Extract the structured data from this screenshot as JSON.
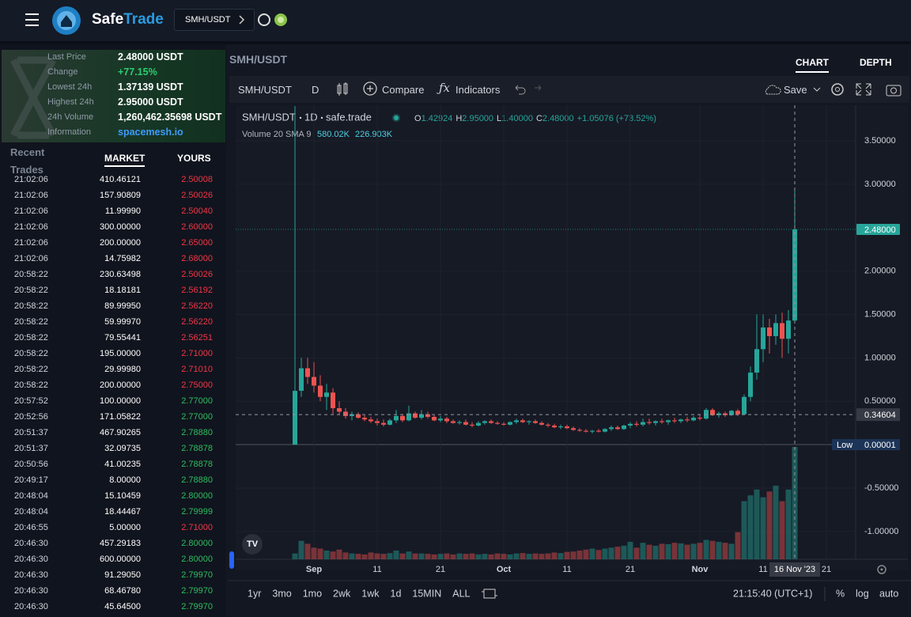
{
  "header": {
    "brand_left": "Safe",
    "brand_right": "Trade",
    "pair": "SMH/USDT"
  },
  "market_info": {
    "rows": [
      {
        "label": "Last Price",
        "value": "2.48000 USDT"
      },
      {
        "label": "Change",
        "value": "+77.15%"
      },
      {
        "label": "Lowest 24h",
        "value": "1.37139 USDT"
      },
      {
        "label": "Highest 24h",
        "value": "2.95000 USDT"
      },
      {
        "label": "24h Volume",
        "value": "1,260,462.35698 USDT"
      },
      {
        "label": "Information",
        "value": "spacemesh.io"
      }
    ]
  },
  "recent_trades": {
    "title": "Recent Trades",
    "tabs": [
      "MARKET",
      "YOURS"
    ],
    "sell_color": "#f23645",
    "buy_color": "#2ebd5f",
    "rows": [
      [
        "21:02:06",
        "410.46121",
        "2.50008",
        "sell"
      ],
      [
        "21:02:06",
        "157.90809",
        "2.50026",
        "sell"
      ],
      [
        "21:02:06",
        "11.99990",
        "2.50040",
        "sell"
      ],
      [
        "21:02:06",
        "300.00000",
        "2.60000",
        "sell"
      ],
      [
        "21:02:06",
        "200.00000",
        "2.65000",
        "sell"
      ],
      [
        "21:02:06",
        "14.75982",
        "2.68000",
        "sell"
      ],
      [
        "20:58:22",
        "230.63498",
        "2.50026",
        "sell"
      ],
      [
        "20:58:22",
        "18.18181",
        "2.56192",
        "sell"
      ],
      [
        "20:58:22",
        "89.99950",
        "2.56220",
        "sell"
      ],
      [
        "20:58:22",
        "59.99970",
        "2.56220",
        "sell"
      ],
      [
        "20:58:22",
        "79.55441",
        "2.56251",
        "sell"
      ],
      [
        "20:58:22",
        "195.00000",
        "2.71000",
        "sell"
      ],
      [
        "20:58:22",
        "29.99980",
        "2.71010",
        "sell"
      ],
      [
        "20:58:22",
        "200.00000",
        "2.75000",
        "sell"
      ],
      [
        "20:57:52",
        "100.00000",
        "2.77000",
        "buy"
      ],
      [
        "20:52:56",
        "171.05822",
        "2.77000",
        "buy"
      ],
      [
        "20:51:37",
        "467.90265",
        "2.78880",
        "buy"
      ],
      [
        "20:51:37",
        "32.09735",
        "2.78878",
        "buy"
      ],
      [
        "20:50:56",
        "41.00235",
        "2.78878",
        "buy"
      ],
      [
        "20:49:17",
        "8.00000",
        "2.78880",
        "buy"
      ],
      [
        "20:48:04",
        "15.10459",
        "2.80000",
        "buy"
      ],
      [
        "20:48:04",
        "18.44467",
        "2.79999",
        "buy"
      ],
      [
        "20:46:55",
        "5.00000",
        "2.71000",
        "sell"
      ],
      [
        "20:46:30",
        "457.29183",
        "2.80000",
        "buy"
      ],
      [
        "20:46:30",
        "600.00000",
        "2.80000",
        "buy"
      ],
      [
        "20:46:30",
        "91.29050",
        "2.79970",
        "buy"
      ],
      [
        "20:46:30",
        "68.46780",
        "2.79970",
        "buy"
      ],
      [
        "20:46:30",
        "45.64500",
        "2.79970",
        "buy"
      ]
    ]
  },
  "chart_panel": {
    "title": "SMH/USDT",
    "tabs": [
      "CHART",
      "DEPTH"
    ],
    "toolbar": {
      "symbol": "SMH/USDT",
      "interval": "D",
      "compare": "Compare",
      "indicators": "Indicators",
      "save": "Save"
    },
    "legend": {
      "symbol": "SMH/USDT",
      "interval": "1D",
      "source": "safe.trade",
      "ohlc": [
        {
          "key": "O",
          "value": "1.42924"
        },
        {
          "key": "H",
          "value": "2.95000"
        },
        {
          "key": "L",
          "value": "1.40000"
        },
        {
          "key": "C",
          "value": "2.48000"
        }
      ],
      "change": "+1.05076 (+73.52%)",
      "volume_label": "Volume 20 SMA 9",
      "volume_values": [
        "580.02K",
        "226.903K"
      ]
    },
    "timeframes": [
      "1yr",
      "3mo",
      "1mo",
      "2wk",
      "1wk",
      "1d",
      "15MIN",
      "ALL"
    ],
    "clock": "21:15:40 (UTC+1)",
    "scale_options": [
      "%",
      "log",
      "auto"
    ]
  },
  "chart": {
    "type": "candlestick",
    "up_color": "#26a69a",
    "down_color": "#ef5350",
    "xlim": [
      -9.375,
      88.625
    ],
    "ylim": [
      -1.32,
      3.91
    ],
    "xticks": [
      {
        "value": 3,
        "label": "Sep"
      },
      {
        "value": 13,
        "label": "11"
      },
      {
        "value": 23,
        "label": "21"
      },
      {
        "value": 33,
        "label": "Oct"
      },
      {
        "value": 43,
        "label": "11"
      },
      {
        "value": 53,
        "label": "21"
      },
      {
        "value": 64,
        "label": "Nov"
      },
      {
        "value": 74,
        "label": "11"
      },
      {
        "value": 84,
        "label": "21"
      }
    ],
    "yticks": [
      {
        "value": 3.5,
        "label": "3.50000"
      },
      {
        "value": 3,
        "label": "3.00000"
      },
      {
        "value": 2,
        "label": "2.00000"
      },
      {
        "value": 1.5,
        "label": "1.50000"
      },
      {
        "value": 1,
        "label": "1.00000"
      },
      {
        "value": 0.5,
        "label": "0.50000"
      },
      {
        "value": -0.5,
        "label": "-0.50000"
      },
      {
        "value": -1,
        "label": "-1.00000"
      }
    ],
    "last_price": {
      "value": 2.48,
      "label": "2.48000"
    },
    "low": {
      "prefix": "Low",
      "value": 1e-05,
      "label": "0.00001"
    },
    "crosshair": {
      "x": 79,
      "x_label": "16 Nov '23",
      "y": 0.34604,
      "y_label": "0.34604"
    },
    "candles": [
      [
        1e-05,
        3.9,
        1e-05,
        0.62
      ],
      [
        0.62,
        1.0,
        0.55,
        0.88
      ],
      [
        0.88,
        1.0,
        0.7,
        0.78
      ],
      [
        0.78,
        0.95,
        0.6,
        0.68
      ],
      [
        0.68,
        0.8,
        0.5,
        0.55
      ],
      [
        0.55,
        0.7,
        0.4,
        0.6
      ],
      [
        0.6,
        0.65,
        0.35,
        0.42
      ],
      [
        0.42,
        0.5,
        0.35,
        0.38
      ],
      [
        0.38,
        0.42,
        0.3,
        0.33
      ],
      [
        0.33,
        0.38,
        0.28,
        0.35
      ],
      [
        0.35,
        0.37,
        0.3,
        0.31
      ],
      [
        0.31,
        0.34,
        0.27,
        0.29
      ],
      [
        0.29,
        0.32,
        0.25,
        0.27
      ],
      [
        0.27,
        0.3,
        0.22,
        0.25
      ],
      [
        0.25,
        0.29,
        0.21,
        0.23
      ],
      [
        0.23,
        0.3,
        0.22,
        0.28
      ],
      [
        0.28,
        0.4,
        0.25,
        0.33
      ],
      [
        0.33,
        0.35,
        0.26,
        0.28
      ],
      [
        0.28,
        0.45,
        0.27,
        0.36
      ],
      [
        0.36,
        0.38,
        0.3,
        0.31
      ],
      [
        0.31,
        0.4,
        0.29,
        0.35
      ],
      [
        0.35,
        0.38,
        0.3,
        0.32
      ],
      [
        0.32,
        0.34,
        0.27,
        0.28
      ],
      [
        0.28,
        0.33,
        0.26,
        0.3
      ],
      [
        0.3,
        0.32,
        0.25,
        0.27
      ],
      [
        0.27,
        0.29,
        0.24,
        0.25
      ],
      [
        0.25,
        0.28,
        0.23,
        0.26
      ],
      [
        0.26,
        0.29,
        0.22,
        0.23
      ],
      [
        0.23,
        0.26,
        0.2,
        0.22
      ],
      [
        0.22,
        0.27,
        0.21,
        0.25
      ],
      [
        0.25,
        0.28,
        0.23,
        0.27
      ],
      [
        0.27,
        0.29,
        0.24,
        0.25
      ],
      [
        0.25,
        0.27,
        0.23,
        0.24
      ],
      [
        0.24,
        0.26,
        0.22,
        0.23
      ],
      [
        0.23,
        0.27,
        0.22,
        0.26
      ],
      [
        0.26,
        0.3,
        0.24,
        0.28
      ],
      [
        0.28,
        0.3,
        0.25,
        0.26
      ],
      [
        0.26,
        0.28,
        0.23,
        0.27
      ],
      [
        0.27,
        0.29,
        0.24,
        0.25
      ],
      [
        0.25,
        0.27,
        0.22,
        0.23
      ],
      [
        0.23,
        0.25,
        0.2,
        0.22
      ],
      [
        0.22,
        0.24,
        0.19,
        0.2
      ],
      [
        0.2,
        0.23,
        0.18,
        0.21
      ],
      [
        0.21,
        0.23,
        0.18,
        0.19
      ],
      [
        0.19,
        0.21,
        0.16,
        0.17
      ],
      [
        0.17,
        0.19,
        0.15,
        0.16
      ],
      [
        0.16,
        0.18,
        0.14,
        0.15
      ],
      [
        0.15,
        0.17,
        0.13,
        0.16
      ],
      [
        0.16,
        0.18,
        0.14,
        0.15
      ],
      [
        0.15,
        0.19,
        0.14,
        0.18
      ],
      [
        0.18,
        0.22,
        0.16,
        0.2
      ],
      [
        0.2,
        0.22,
        0.17,
        0.18
      ],
      [
        0.18,
        0.23,
        0.17,
        0.22
      ],
      [
        0.22,
        0.26,
        0.19,
        0.24
      ],
      [
        0.24,
        0.27,
        0.21,
        0.23
      ],
      [
        0.23,
        0.3,
        0.21,
        0.26
      ],
      [
        0.26,
        0.3,
        0.23,
        0.25
      ],
      [
        0.25,
        0.28,
        0.22,
        0.27
      ],
      [
        0.27,
        0.3,
        0.24,
        0.26
      ],
      [
        0.26,
        0.29,
        0.23,
        0.28
      ],
      [
        0.28,
        0.31,
        0.25,
        0.27
      ],
      [
        0.27,
        0.3,
        0.25,
        0.29
      ],
      [
        0.29,
        0.32,
        0.26,
        0.28
      ],
      [
        0.28,
        0.33,
        0.27,
        0.31
      ],
      [
        0.31,
        0.35,
        0.28,
        0.3
      ],
      [
        0.3,
        0.42,
        0.29,
        0.4
      ],
      [
        0.4,
        0.42,
        0.33,
        0.34
      ],
      [
        0.34,
        0.38,
        0.31,
        0.36
      ],
      [
        0.36,
        0.38,
        0.32,
        0.34
      ],
      [
        0.34,
        0.4,
        0.33,
        0.39
      ],
      [
        0.39,
        0.41,
        0.33,
        0.35
      ],
      [
        0.35,
        0.58,
        0.34,
        0.55
      ],
      [
        0.55,
        0.9,
        0.5,
        0.83
      ],
      [
        0.83,
        1.5,
        0.75,
        1.1
      ],
      [
        1.1,
        1.5,
        0.95,
        1.35
      ],
      [
        1.35,
        1.45,
        1.05,
        1.25
      ],
      [
        1.25,
        1.5,
        1.15,
        1.4
      ],
      [
        1.4,
        1.52,
        1.0,
        1.22
      ],
      [
        1.22,
        1.55,
        1.05,
        1.43
      ],
      [
        1.42924,
        2.95,
        1.4,
        2.48
      ]
    ],
    "volumes": [
      30,
      95,
      80,
      60,
      55,
      45,
      40,
      50,
      35,
      30,
      28,
      25,
      35,
      30,
      28,
      32,
      45,
      30,
      40,
      30,
      30,
      28,
      25,
      28,
      30,
      25,
      30,
      28,
      30,
      25,
      28,
      25,
      30,
      28,
      25,
      30,
      32,
      28,
      30,
      28,
      30,
      35,
      32,
      38,
      40,
      45,
      50,
      55,
      48,
      55,
      60,
      65,
      70,
      90,
      60,
      85,
      75,
      70,
      80,
      78,
      85,
      82,
      75,
      80,
      85,
      100,
      95,
      90,
      85,
      80,
      140,
      300,
      330,
      360,
      320,
      350,
      380,
      300,
      360,
      580.02
    ]
  }
}
